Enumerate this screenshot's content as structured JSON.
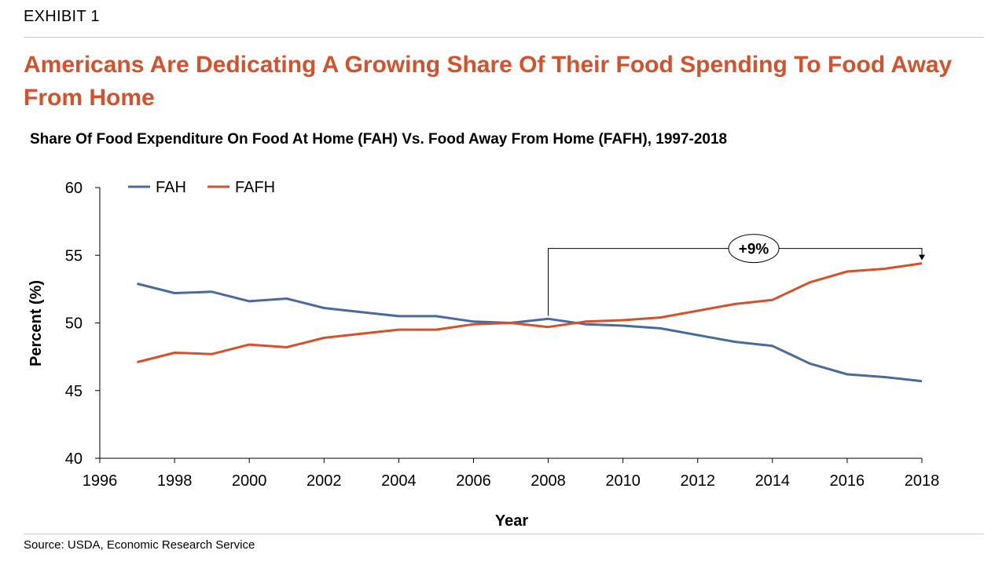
{
  "exhibit_label": "EXHIBIT 1",
  "headline": "Americans Are Dedicating A Growing Share Of Their Food Spending To Food Away From Home",
  "subtitle": "Share Of Food Expenditure On Food At Home (FAH) Vs. Food Away From Home (FAFH), 1997-2018",
  "source": "Source: USDA, Economic Research Service",
  "chart_data": {
    "type": "line",
    "xlabel": "Year",
    "ylabel": "Percent (%)",
    "xlim": [
      1996,
      2018
    ],
    "ylim": [
      40,
      60
    ],
    "xticks": [
      1996,
      1998,
      2000,
      2002,
      2004,
      2006,
      2008,
      2010,
      2012,
      2014,
      2016,
      2018
    ],
    "yticks": [
      40,
      45,
      50,
      55,
      60
    ],
    "grid": false,
    "legend_position": "top-left",
    "x": [
      1997,
      1998,
      1999,
      2000,
      2001,
      2002,
      2003,
      2004,
      2005,
      2006,
      2007,
      2008,
      2009,
      2010,
      2011,
      2012,
      2013,
      2014,
      2015,
      2016,
      2017,
      2018
    ],
    "series": [
      {
        "name": "FAH",
        "color": "#4a6a9b",
        "values": [
          52.9,
          52.2,
          52.3,
          51.6,
          51.8,
          51.1,
          50.8,
          50.5,
          50.5,
          50.1,
          50.0,
          50.3,
          49.9,
          49.8,
          49.6,
          49.1,
          48.6,
          48.3,
          47.0,
          46.2,
          46.0,
          45.7
        ]
      },
      {
        "name": "FAFH",
        "color": "#d4512b",
        "values": [
          47.1,
          47.8,
          47.7,
          48.4,
          48.2,
          48.9,
          49.2,
          49.5,
          49.5,
          49.9,
          50.0,
          49.7,
          50.1,
          50.2,
          50.4,
          50.9,
          51.4,
          51.7,
          53.0,
          53.8,
          54.0,
          54.4
        ]
      }
    ],
    "annotation": {
      "label": "+9%",
      "from_x": 2008,
      "to_x": 2018,
      "bracket_level": 55.5
    }
  }
}
